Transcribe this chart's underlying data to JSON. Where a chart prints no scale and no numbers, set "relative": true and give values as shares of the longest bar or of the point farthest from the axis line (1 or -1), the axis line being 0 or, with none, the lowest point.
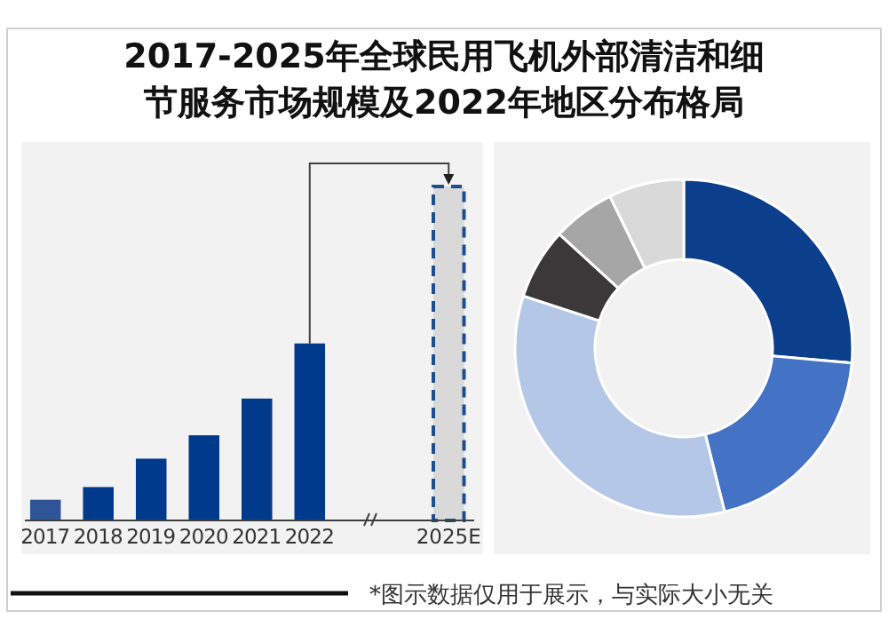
{
  "chart_data": [
    {
      "type": "bar",
      "title": "2017-2025年全球民用飞机外部清洁和细节服务市场规模及2022年地区分布格局",
      "categories": [
        "2017",
        "2018",
        "2019",
        "2020",
        "2021",
        "2022",
        "2025E"
      ],
      "values": [
        0.062,
        0.1,
        0.185,
        0.255,
        0.365,
        0.53,
        1
      ],
      "colors": [
        "#2f5597",
        "#003a8c",
        "#003a8c",
        "#003a8c",
        "#003a8c",
        "#003a8c",
        "#d9d9d9"
      ],
      "relative": true,
      "annotations": [
        "*图示数据仅用于展示，与实际大小无关"
      ]
    },
    {
      "type": "donut",
      "categories": [
        null,
        null,
        null,
        null,
        null,
        null
      ],
      "values": [
        26.4,
        19.7,
        33.9,
        6.8,
        6.0,
        7.2
      ],
      "colors": [
        "#0b3f8c",
        "#4472c4",
        "#b4c7e7",
        "#3a3838",
        "#a6a6a6",
        "#d9d9d9"
      ]
    }
  ]
}
